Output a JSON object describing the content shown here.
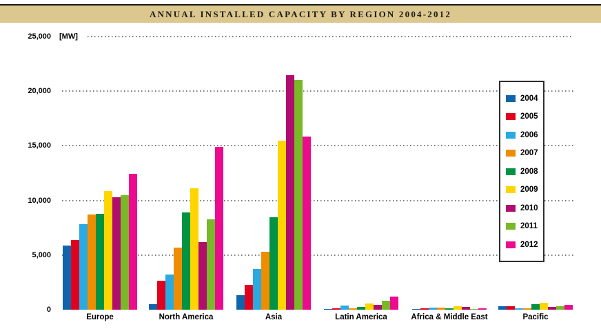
{
  "title": "ANNUAL INSTALLED CAPACITY BY REGION 2004-2012",
  "unit_label": "[MW]",
  "colors": {
    "title_band": "#dcc88f",
    "top_rule": "#191913",
    "grid_dots": "#767676",
    "legend_border": "#2e2d2b",
    "text": "#000000"
  },
  "chart_data": {
    "type": "bar",
    "title": "ANNUAL INSTALLED CAPACITY BY REGION 2004-2012",
    "ylabel": "[MW]",
    "xlabel": "",
    "ylim": [
      0,
      25000
    ],
    "ytick_interval": 5000,
    "ytick_labels": [
      "0",
      "5,000",
      "10,000",
      "15,000",
      "20,000",
      "25,000"
    ],
    "grid": "horizontal dotted",
    "legend_position": "right",
    "categories": [
      "Europe",
      "North America",
      "Asia",
      "Latin America",
      "Africa & Middle East",
      "Pacific"
    ],
    "series": [
      {
        "name": "2004",
        "color": "#1064ab",
        "values": [
          5900,
          500,
          1300,
          50,
          50,
          290
        ]
      },
      {
        "name": "2005",
        "color": "#e1001e",
        "values": [
          6350,
          2650,
          2250,
          150,
          100,
          310
        ]
      },
      {
        "name": "2006",
        "color": "#2ba9e1",
        "values": [
          7850,
          3250,
          3700,
          400,
          200,
          150
        ]
      },
      {
        "name": "2007",
        "color": "#ef8d00",
        "values": [
          8700,
          5700,
          5300,
          100,
          200,
          100
        ]
      },
      {
        "name": "2008",
        "color": "#009343",
        "values": [
          8800,
          8900,
          8450,
          250,
          100,
          500
        ]
      },
      {
        "name": "2009",
        "color": "#ffd500",
        "values": [
          10850,
          11100,
          15450,
          550,
          300,
          620
        ]
      },
      {
        "name": "2010",
        "color": "#b00d6e",
        "values": [
          10300,
          6200,
          21450,
          450,
          270,
          230
        ]
      },
      {
        "name": "2011",
        "color": "#79b829",
        "values": [
          10500,
          8250,
          21000,
          800,
          80,
          330
        ]
      },
      {
        "name": "2012",
        "color": "#ec0a8e",
        "values": [
          12450,
          14900,
          15850,
          1200,
          120,
          420
        ]
      }
    ]
  }
}
